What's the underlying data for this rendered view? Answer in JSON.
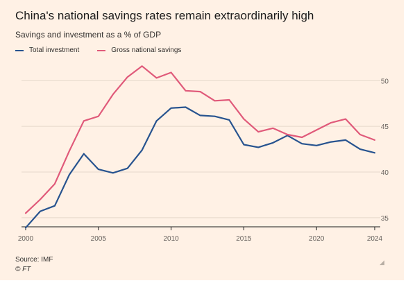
{
  "chart_data": {
    "type": "line",
    "title": "China's national savings rates remain extraordinarily high",
    "subtitle": "Savings and investment as a % of GDP",
    "xlabel": "",
    "ylabel": "",
    "xlim": [
      2000,
      2024
    ],
    "ylim": [
      34,
      52
    ],
    "x_ticks": [
      "2000",
      "2005",
      "2010",
      "2015",
      "2020",
      "2024"
    ],
    "y_ticks": [
      "35",
      "40",
      "45",
      "50"
    ],
    "x": [
      2000,
      2001,
      2002,
      2003,
      2004,
      2005,
      2006,
      2007,
      2008,
      2009,
      2010,
      2011,
      2012,
      2013,
      2014,
      2015,
      2016,
      2017,
      2018,
      2019,
      2020,
      2021,
      2022,
      2023,
      2024
    ],
    "series": [
      {
        "name": "Total investment",
        "color": "#27538f",
        "values": [
          33.9,
          35.7,
          36.3,
          39.7,
          42.0,
          40.3,
          39.9,
          40.4,
          42.4,
          45.6,
          47.0,
          47.1,
          46.2,
          46.1,
          45.7,
          43.0,
          42.7,
          43.2,
          44.0,
          43.1,
          42.9,
          43.3,
          43.5,
          42.5,
          42.1
        ]
      },
      {
        "name": "Gross national savings",
        "color": "#e05a7a",
        "values": [
          35.5,
          37.0,
          38.7,
          42.3,
          45.6,
          46.1,
          48.5,
          50.4,
          51.6,
          50.3,
          50.9,
          48.9,
          48.8,
          47.8,
          47.9,
          45.8,
          44.4,
          44.8,
          44.1,
          43.8,
          44.6,
          45.4,
          45.8,
          44.1,
          43.5
        ]
      }
    ],
    "grid": true,
    "legend": "top-left"
  },
  "footer": {
    "source": "Source: IMF",
    "copyright": "© FT"
  }
}
